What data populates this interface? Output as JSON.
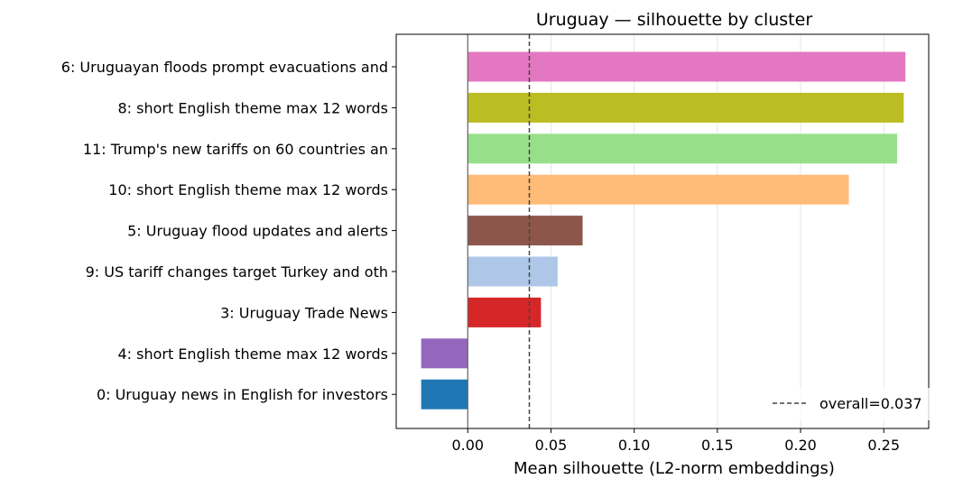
{
  "chart_data": {
    "type": "bar",
    "orientation": "horizontal",
    "title": "Uruguay — silhouette by cluster",
    "xlabel": "Mean silhouette (L2-norm embeddings)",
    "ylabel": "",
    "xlim": [
      -0.043,
      0.277
    ],
    "xticks": [
      0.0,
      0.05,
      0.1,
      0.15,
      0.2,
      0.25
    ],
    "xtick_labels": [
      "0.00",
      "0.05",
      "0.10",
      "0.15",
      "0.20",
      "0.25"
    ],
    "grid": "vertical",
    "categories": [
      "6: Uruguayan floods prompt evacuations and",
      "8: short English theme max 12 words",
      "11: Trump's new tariffs on 60 countries an",
      "10: short English theme max 12 words",
      "5: Uruguay flood updates and alerts",
      "9: US tariff changes target Turkey and oth",
      "3: Uruguay Trade News",
      "4: short English theme max 12 words",
      "0: Uruguay news in English for investors"
    ],
    "values": [
      0.263,
      0.262,
      0.258,
      0.229,
      0.069,
      0.054,
      0.044,
      -0.028,
      -0.028
    ],
    "colors": [
      "#e377c2",
      "#bcbd22",
      "#98df8a",
      "#ffbb78",
      "#8c564b",
      "#aec7e8",
      "#d62728",
      "#9467bd",
      "#1f77b4"
    ],
    "reference_line": {
      "value": 0.037,
      "label": "overall=0.037",
      "style": "dashed",
      "color": "#444444"
    },
    "legend": {
      "position": "bottom-right",
      "entries": [
        "overall=0.037"
      ]
    }
  }
}
